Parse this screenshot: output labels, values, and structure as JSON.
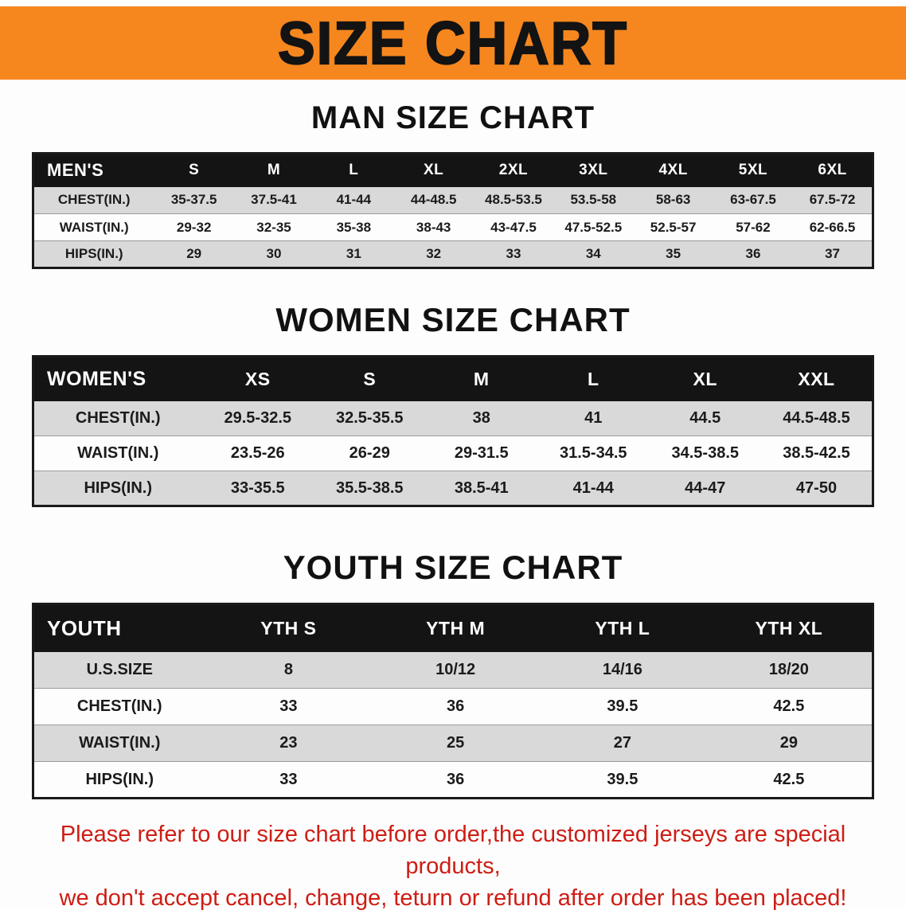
{
  "banner": {
    "title": "SIZE CHART"
  },
  "sections": [
    {
      "heading": "MAN SIZE CHART",
      "table": {
        "header": [
          "MEN'S",
          "S",
          "M",
          "L",
          "XL",
          "2XL",
          "3XL",
          "4XL",
          "5XL",
          "6XL"
        ],
        "rows": [
          [
            "CHEST(IN.)",
            "35-37.5",
            "37.5-41",
            "41-44",
            "44-48.5",
            "48.5-53.5",
            "53.5-58",
            "58-63",
            "63-67.5",
            "67.5-72"
          ],
          [
            "WAIST(IN.)",
            "29-32",
            "32-35",
            "35-38",
            "38-43",
            "43-47.5",
            "47.5-52.5",
            "52.5-57",
            "57-62",
            "62-66.5"
          ],
          [
            "HIPS(IN.)",
            "29",
            "30",
            "31",
            "32",
            "33",
            "34",
            "35",
            "36",
            "37"
          ]
        ]
      }
    },
    {
      "heading": "WOMEN SIZE CHART",
      "table": {
        "header": [
          "WOMEN'S",
          "XS",
          "S",
          "M",
          "L",
          "XL",
          "XXL"
        ],
        "rows": [
          [
            "CHEST(IN.)",
            "29.5-32.5",
            "32.5-35.5",
            "38",
            "41",
            "44.5",
            "44.5-48.5"
          ],
          [
            "WAIST(IN.)",
            "23.5-26",
            "26-29",
            "29-31.5",
            "31.5-34.5",
            "34.5-38.5",
            "38.5-42.5"
          ],
          [
            "HIPS(IN.)",
            "33-35.5",
            "35.5-38.5",
            "38.5-41",
            "41-44",
            "44-47",
            "47-50"
          ]
        ]
      }
    },
    {
      "heading": "YOUTH SIZE CHART",
      "table": {
        "header": [
          "YOUTH",
          "YTH S",
          "YTH M",
          "YTH L",
          "YTH XL"
        ],
        "rows": [
          [
            "U.S.SIZE",
            "8",
            "10/12",
            "14/16",
            "18/20"
          ],
          [
            "CHEST(IN.)",
            "33",
            "36",
            "39.5",
            "42.5"
          ],
          [
            "WAIST(IN.)",
            "23",
            "25",
            "27",
            "29"
          ],
          [
            "HIPS(IN.)",
            "33",
            "36",
            "39.5",
            "42.5"
          ]
        ]
      }
    }
  ],
  "disclaimer": {
    "lines": [
      "Please refer to our size chart before order,the customized jerseys are special products,",
      "we don't accept cancel, change, teturn or refund after order has been placed!"
    ]
  },
  "colors": {
    "banner-bg": "#f6871f",
    "header-bg": "#141414",
    "row-shaded": "#d9d9d9",
    "row-plain": "#fdfdfd",
    "disclaimer-text": "#ce1d14"
  }
}
